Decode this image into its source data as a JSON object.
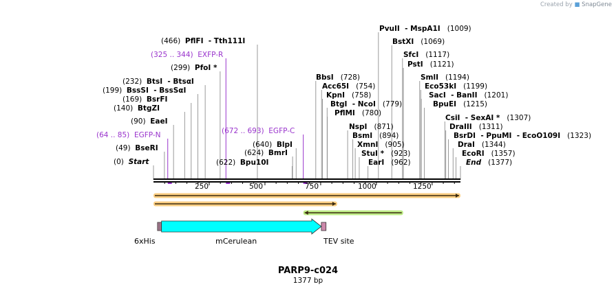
{
  "credit": {
    "prefix": "Created by",
    "brand": "SnapGene"
  },
  "title": "PARP9-c024",
  "subtitle": "1377 bp",
  "sequence_length": 1377,
  "axis_ticks": [
    "250",
    "500",
    "750",
    "1000",
    "1250"
  ],
  "colors": {
    "primer": "#9933cc",
    "cyan": "#00ffff",
    "pink": "#cc88aa",
    "orange": "#f7a51c",
    "green": "#88dd22"
  },
  "sites": [
    {
      "name": "Start",
      "pos": 0,
      "label": "(0)  Start",
      "italic": true
    },
    {
      "name": "BseRI",
      "pos": 49,
      "label": "(49)  BseRI"
    },
    {
      "name": "EGFP-N",
      "pos": 64,
      "label": "(64 .. 85)  EGFP-N",
      "primer": true
    },
    {
      "name": "EaeI",
      "pos": 90,
      "label": "(90)  EaeI"
    },
    {
      "name": "BtgZI",
      "pos": 140,
      "label": "(140)  BtgZI"
    },
    {
      "name": "BsrFI",
      "pos": 169,
      "label": "(169)  BsrFI"
    },
    {
      "name": "BssSI - BssSαI",
      "pos": 199,
      "label": "(199)  BssSI  - BssSαI"
    },
    {
      "name": "BtsI - BtsαI",
      "pos": 232,
      "label": "(232)  BtsI  - BtsαI"
    },
    {
      "name": "PfoI *",
      "pos": 299,
      "label": "(299)  PfoI *"
    },
    {
      "name": "EXFP-R",
      "pos": 325,
      "label": "(325 .. 344)  EXFP-R",
      "primer": true
    },
    {
      "name": "PflFI - Tth111I",
      "pos": 466,
      "label": "(466)  PflFI  - Tth111I"
    },
    {
      "name": "Bpu10I",
      "pos": 622,
      "label": "(622)  Bpu10I"
    },
    {
      "name": "BmrI",
      "pos": 624,
      "label": "(624)  BmrI"
    },
    {
      "name": "BlpI",
      "pos": 640,
      "label": "(640)  BlpI"
    },
    {
      "name": "EGFP-C",
      "pos": 672,
      "label": "(672 .. 693)  EGFP-C",
      "primer": true
    },
    {
      "name": "BbsI",
      "pos": 728,
      "label": "BbsI   (728)"
    },
    {
      "name": "Acc65I",
      "pos": 754,
      "label": "Acc65I   (754)"
    },
    {
      "name": "KpnI",
      "pos": 758,
      "label": "KpnI   (758)"
    },
    {
      "name": "BtgI - NcoI",
      "pos": 779,
      "label": "BtgI  - NcoI   (779)"
    },
    {
      "name": "PflMI",
      "pos": 780,
      "label": "PflMI   (780)"
    },
    {
      "name": "NspI",
      "pos": 871,
      "label": "NspI   (871)"
    },
    {
      "name": "BsmI",
      "pos": 894,
      "label": "BsmI   (894)"
    },
    {
      "name": "XmnI",
      "pos": 905,
      "label": "XmnI   (905)"
    },
    {
      "name": "StuI *",
      "pos": 923,
      "label": "StuI *   (923)"
    },
    {
      "name": "EarI",
      "pos": 962,
      "label": "EarI   (962)"
    },
    {
      "name": "PvuII - MspA1I",
      "pos": 1009,
      "label": "PvuII  - MspA1I   (1009)"
    },
    {
      "name": "BstXI",
      "pos": 1069,
      "label": "BstXI   (1069)"
    },
    {
      "name": "SfcI",
      "pos": 1117,
      "label": "SfcI   (1117)"
    },
    {
      "name": "PstI",
      "pos": 1121,
      "label": "PstI   (1121)"
    },
    {
      "name": "SmlI",
      "pos": 1194,
      "label": "SmlI   (1194)"
    },
    {
      "name": "Eco53kI",
      "pos": 1199,
      "label": "Eco53kI   (1199)"
    },
    {
      "name": "SacI - BanII",
      "pos": 1201,
      "label": "SacI  - BanII   (1201)"
    },
    {
      "name": "BpuEI",
      "pos": 1215,
      "label": "BpuEI   (1215)"
    },
    {
      "name": "CsiI - SexAI *",
      "pos": 1307,
      "label": "CsiI  - SexAI *   (1307)"
    },
    {
      "name": "DraIII",
      "pos": 1311,
      "label": "DraIII   (1311)"
    },
    {
      "name": "BsrDI - PpuMI - EcoO109I",
      "pos": 1323,
      "label": "BsrDI  - PpuMI  - EcoO109I   (1323)"
    },
    {
      "name": "DraI",
      "pos": 1344,
      "label": "DraI   (1344)"
    },
    {
      "name": "EcoRI",
      "pos": 1357,
      "label": "EcoRI   (1357)"
    },
    {
      "name": "End",
      "pos": 1377,
      "label": "End   (1377)",
      "italic": true
    }
  ],
  "features": [
    {
      "name": "6xHis",
      "start": 19,
      "end": 36,
      "shape": "box",
      "color": "#cc88aa"
    },
    {
      "name": "mCerulean",
      "start": 37,
      "end": 753,
      "shape": "arrow-right",
      "color": "#00ffff"
    },
    {
      "name": "TEV site",
      "start": 754,
      "end": 774,
      "shape": "box",
      "color": "#cc88aa"
    }
  ],
  "orfs": [
    {
      "name": "orf-1",
      "start": 1,
      "end": 1377,
      "direction": "forward",
      "color": "#f7a51c"
    },
    {
      "name": "orf-2",
      "start": 1,
      "end": 824,
      "direction": "forward",
      "color": "#f7a51c"
    },
    {
      "name": "orf-3",
      "start": 673,
      "end": 1120,
      "direction": "reverse",
      "color": "#88dd22"
    }
  ]
}
